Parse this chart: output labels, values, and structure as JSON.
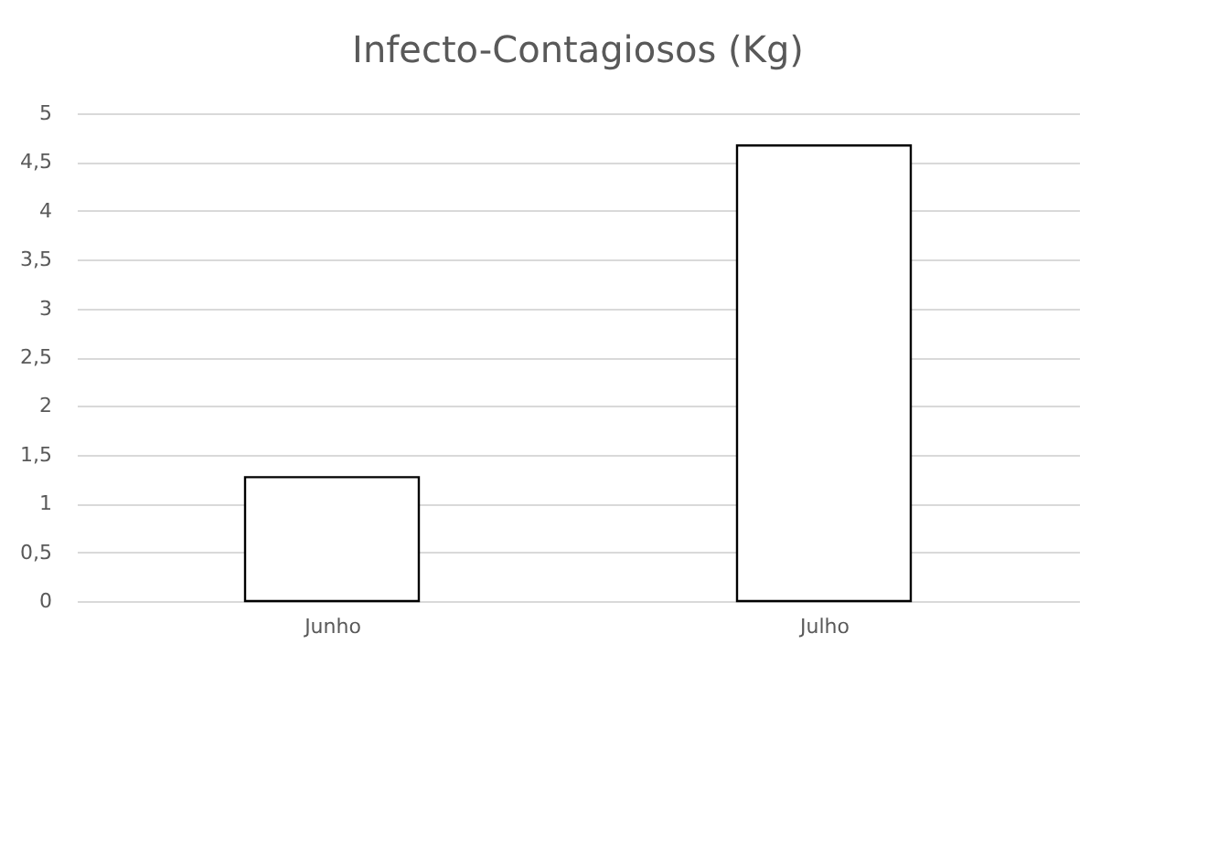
{
  "chart_data": {
    "type": "bar",
    "title": "Infecto-Contagiosos (Kg)",
    "categories": [
      "Junho",
      "Julho"
    ],
    "values": [
      1.27,
      4.67
    ],
    "color": "#ffffff",
    "ylim": [
      0,
      5
    ],
    "yticks": [
      0,
      {
        "value": 0.5,
        "label": "0,5"
      },
      1,
      {
        "value": 1.5,
        "label": "1,5"
      },
      2,
      {
        "value": 2.5,
        "label": "2,5"
      },
      3,
      {
        "value": 3.5,
        "label": "3,5"
      },
      4,
      {
        "value": 4.5,
        "label": "4,5"
      },
      5
    ],
    "grid": "y"
  }
}
